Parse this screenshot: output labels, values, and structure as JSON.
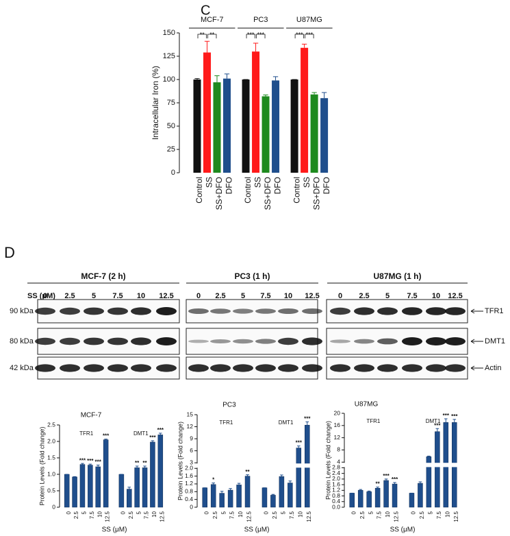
{
  "labels": {
    "c": "C",
    "d": "D"
  },
  "blot": {
    "dose_label": "SS (μM)",
    "panels": [
      {
        "title": "MCF-7 (2 h)",
        "lanes": [
          "0",
          "2.5",
          "5",
          "7.5",
          "10",
          "12.5"
        ]
      },
      {
        "title": "PC3 (1 h)",
        "lanes": [
          "0",
          "2.5",
          "5",
          "7.5",
          "10",
          "12.5"
        ]
      },
      {
        "title": "U87MG (1 h)",
        "lanes": [
          "0",
          "2.5",
          "5",
          "7.5",
          "10",
          "12.5"
        ]
      }
    ],
    "markers": [
      "90 kDa",
      "80 kDa",
      "42 kDa"
    ],
    "proteins": [
      "TFR1",
      "DMT1",
      "Actin"
    ]
  },
  "chart_data": [
    {
      "type": "bar",
      "ylabel": "Intracellular Iron (%)",
      "categories": [
        "Control",
        "SS",
        "SS+DFO",
        "DFO"
      ],
      "colors": [
        "#111111",
        "#ff1a1a",
        "#1e8a1e",
        "#1f4e8c"
      ],
      "series": [
        {
          "name": "MCF-7",
          "values": [
            100,
            129,
            97,
            101
          ],
          "errors": [
            1,
            12,
            7,
            5
          ],
          "significance": [
            "**",
            "**"
          ]
        },
        {
          "name": "PC3",
          "values": [
            100,
            130,
            82,
            99
          ],
          "errors": [
            0,
            9,
            1.5,
            4
          ],
          "significance": [
            "***",
            "***"
          ]
        },
        {
          "name": "U87MG",
          "values": [
            100,
            134,
            84,
            80
          ],
          "errors": [
            0,
            4,
            2,
            6
          ],
          "significance": [
            "***",
            "***"
          ]
        }
      ],
      "ylim": [
        0,
        150
      ],
      "yticks": [
        0,
        25,
        50,
        75,
        100,
        125,
        150
      ]
    },
    {
      "type": "bar",
      "title": "MCF-7",
      "ylabel": "Protein Levels (Fold change)",
      "xlabel": "SS (μM)",
      "categories": [
        "0",
        "2.5",
        "5",
        "7.5",
        "10",
        "12.5"
      ],
      "series": [
        {
          "name": "TFR1",
          "color": "#1f4e8c",
          "values": [
            1.0,
            0.92,
            1.3,
            1.28,
            1.23,
            2.05
          ],
          "errors": [
            0,
            0.01,
            0.03,
            0.03,
            0.05,
            0.02
          ],
          "annotations": [
            null,
            null,
            "***",
            "***",
            "***",
            "***"
          ]
        },
        {
          "name": "DMT1",
          "color": "#1f4e8c",
          "values": [
            1.0,
            0.55,
            1.2,
            1.2,
            1.98,
            2.2
          ],
          "errors": [
            0,
            0.06,
            0.05,
            0.05,
            0.04,
            0.05
          ],
          "annotations": [
            null,
            null,
            "**",
            "**",
            "***",
            "***"
          ]
        }
      ],
      "ylim": [
        0,
        2.5
      ],
      "yticks": [
        0,
        0.5,
        {
          "value": 1,
          "label": "1.0"
        },
        {
          "value": 1.5,
          "label": "1.5"
        },
        {
          "value": 2,
          "label": "2.0"
        },
        {
          "value": 2.5,
          "label": "2.5"
        }
      ]
    },
    {
      "type": "bar",
      "title": "PC3",
      "ylabel": "Protein Levels (Fold change)",
      "xlabel": "SS (μM)",
      "categories": [
        "0",
        "2.5",
        "5",
        "7.5",
        "10",
        "12.5"
      ],
      "series": [
        {
          "name": "TFR1",
          "color": "#1f4e8c",
          "values": [
            1.0,
            1.17,
            0.72,
            0.88,
            1.15,
            1.6
          ],
          "errors": [
            0,
            0.08,
            0.1,
            0.08,
            0.08,
            0.07
          ],
          "annotations": [
            null,
            "*",
            null,
            null,
            null,
            "**"
          ]
        },
        {
          "name": "DMT1",
          "color": "#1f4e8c",
          "values": [
            1.0,
            0.62,
            1.58,
            1.25,
            6.7,
            12.4
          ],
          "errors": [
            0,
            0.04,
            0.08,
            0.1,
            0.5,
            0.8
          ],
          "annotations": [
            null,
            null,
            null,
            null,
            "***",
            "***"
          ]
        }
      ],
      "ylim": [
        0,
        15
      ],
      "ybreak": [
        2,
        3
      ],
      "yticks": [
        0,
        0.4,
        0.8,
        1.2,
        1.6,
        {
          "value": 2,
          "label": "2.0"
        },
        3,
        6,
        9,
        12,
        15
      ]
    },
    {
      "type": "bar",
      "title": "U87MG",
      "ylabel": "Protein Levels (Fold change)",
      "xlabel": "SS (μM)",
      "categories": [
        "0",
        "2.5",
        "5",
        "7.5",
        "10",
        "12.5"
      ],
      "series": [
        {
          "name": "TFR1",
          "color": "#1f4e8c",
          "values": [
            1.0,
            1.2,
            1.1,
            1.35,
            1.9,
            1.65
          ],
          "errors": [
            0,
            0.06,
            0.05,
            0.08,
            0.1,
            0.1
          ],
          "annotations": [
            null,
            null,
            null,
            "**",
            "***",
            "***"
          ]
        },
        {
          "name": "DMT1",
          "color": "#1f4e8c",
          "values": [
            1.0,
            1.7,
            5.8,
            14,
            17,
            17
          ],
          "errors": [
            0,
            0.1,
            0.2,
            1,
            1.2,
            1
          ],
          "annotations": [
            null,
            null,
            null,
            "***",
            "***",
            "***"
          ]
        }
      ],
      "ylim": [
        0,
        20
      ],
      "ybreak": [
        2.8,
        4
      ],
      "yticks": [
        {
          "value": 0,
          "label": "0.0"
        },
        0.4,
        0.8,
        1.2,
        1.6,
        {
          "value": 2,
          "label": "2.0"
        },
        2.4,
        2.8,
        4,
        8,
        12,
        16,
        20
      ]
    }
  ]
}
